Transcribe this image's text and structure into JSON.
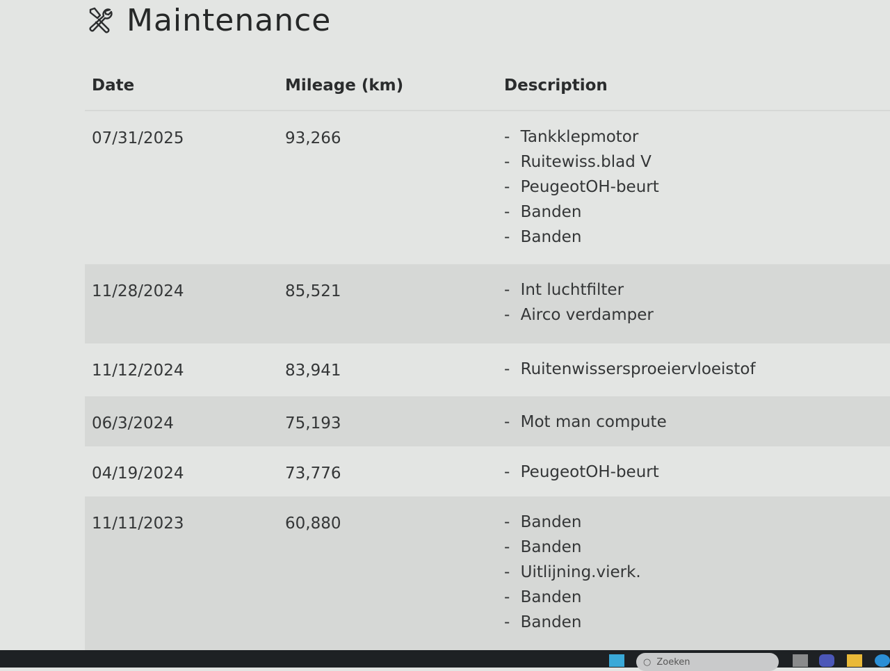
{
  "page": {
    "title": "Maintenance",
    "icon": "wrench-screwdriver-icon"
  },
  "table": {
    "headers": [
      "Date",
      "Mileage (km)",
      "Description"
    ],
    "rows": [
      {
        "date": "07/31/2025",
        "mileage": "93,266",
        "items": [
          "Tankklepmotor",
          "Ruitewiss.blad V",
          "PeugeotOH-beurt",
          "Banden",
          "Banden"
        ]
      },
      {
        "date": "11/28/2024",
        "mileage": "85,521",
        "items": [
          "Int luchtfilter",
          "Airco verdamper"
        ]
      },
      {
        "date": "11/12/2024",
        "mileage": "83,941",
        "items": [
          "Ruitenwissersproeiervloeistof"
        ]
      },
      {
        "date": "06/3/2024",
        "mileage": "75,193",
        "items": [
          "Mot man compute"
        ]
      },
      {
        "date": "04/19/2024",
        "mileage": "73,776",
        "items": [
          "PeugeotOH-beurt"
        ]
      },
      {
        "date": "11/11/2023",
        "mileage": "60,880",
        "items": [
          "Banden",
          "Banden",
          "Uitlijning.vierk.",
          "Banden",
          "Banden"
        ]
      }
    ]
  },
  "taskbar": {
    "search_placeholder": "Zoeken",
    "icons": [
      "windows-start-icon",
      "search-icon",
      "task-view-icon",
      "teams-icon",
      "file-explorer-icon",
      "edge-icon"
    ]
  }
}
